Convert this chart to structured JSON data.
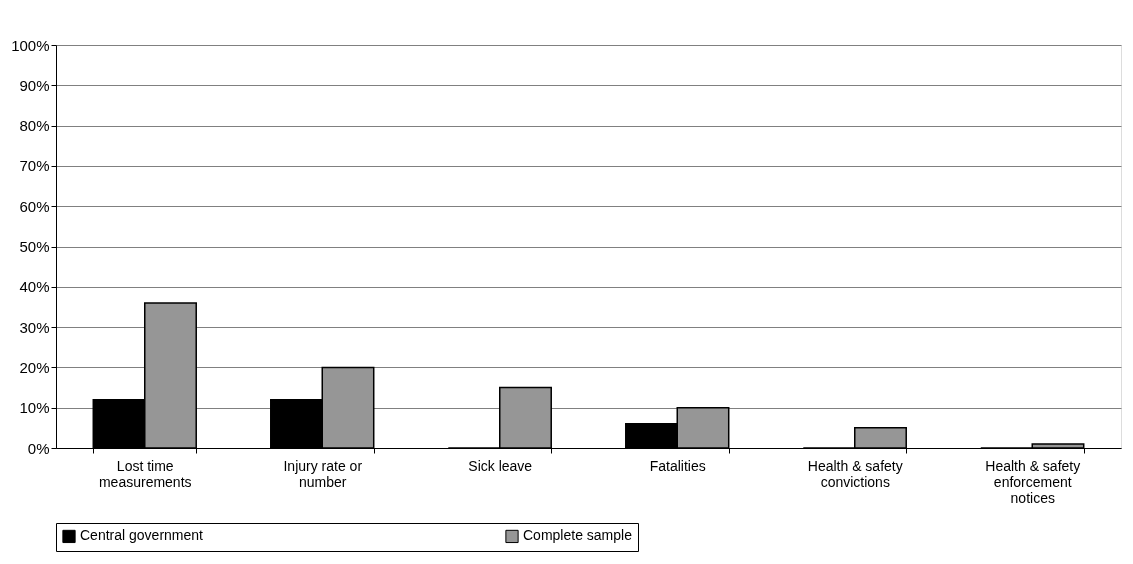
{
  "chart_data": {
    "type": "bar",
    "categories": [
      "Lost time measurements",
      "Injury rate or number",
      "Sick leave",
      "Fatalities",
      "Health & safety convictions",
      "Health & safety enforcement notices"
    ],
    "series": [
      {
        "name": "Central government",
        "color": "#000000",
        "values": [
          12,
          12,
          0,
          6,
          0,
          0
        ]
      },
      {
        "name": "Complete sample",
        "color": "#969696",
        "values": [
          36,
          20,
          15,
          10,
          5,
          1
        ]
      }
    ],
    "ylim": [
      0,
      100
    ],
    "yticks": [
      {
        "value": 0,
        "label": "0%"
      },
      {
        "value": 10,
        "label": "10%"
      },
      {
        "value": 20,
        "label": "20%"
      },
      {
        "value": 30,
        "label": "30%"
      },
      {
        "value": 40,
        "label": "40%"
      },
      {
        "value": 50,
        "label": "50%"
      },
      {
        "value": 60,
        "label": "60%"
      },
      {
        "value": 70,
        "label": "70%"
      },
      {
        "value": 80,
        "label": "80%"
      },
      {
        "value": 90,
        "label": "90%"
      },
      {
        "value": 100,
        "label": "100%"
      }
    ],
    "grid": "y",
    "legend": "bottom"
  }
}
